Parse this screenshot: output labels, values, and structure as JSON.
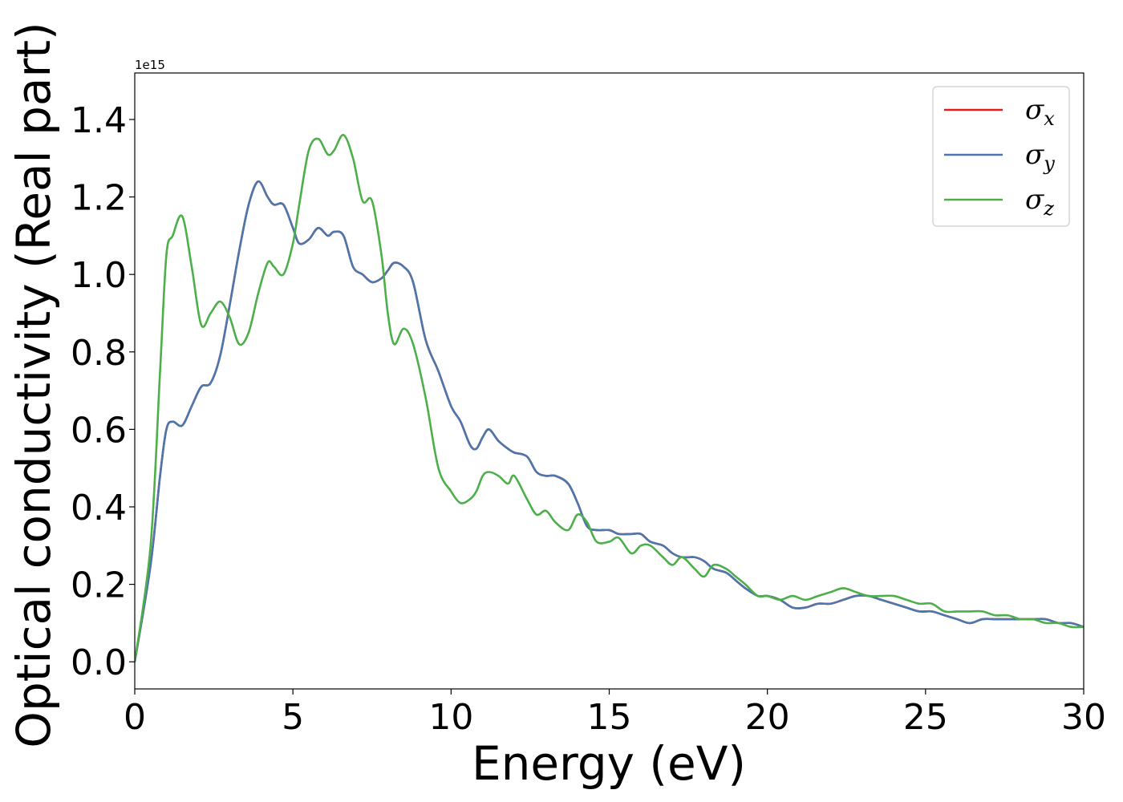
{
  "chart_data": {
    "type": "line",
    "xlabel": "Energy (eV)",
    "ylabel": "Optical conductivity (Real part)",
    "y_offset_text": "1e15",
    "xlim": [
      0,
      30
    ],
    "ylim": [
      -0.07,
      1.52
    ],
    "x_ticks": [
      0,
      5,
      10,
      15,
      20,
      25,
      30
    ],
    "x_tick_labels": [
      "0",
      "5",
      "10",
      "15",
      "20",
      "25",
      "30"
    ],
    "y_ticks": [
      0.0,
      0.2,
      0.4,
      0.6,
      0.8,
      1.0,
      1.2,
      1.4
    ],
    "y_tick_labels": [
      "0.0",
      "0.2",
      "0.4",
      "0.6",
      "0.8",
      "1.0",
      "1.2",
      "1.4"
    ],
    "grid": false,
    "legend_position": "top-right",
    "series": [
      {
        "name": "σ",
        "subscript": "x",
        "color": "#e41a1c",
        "x": [
          0,
          0.5,
          0.8,
          1.0,
          1.2,
          1.5,
          1.8,
          2.1,
          2.4,
          2.7,
          3.0,
          3.3,
          3.6,
          3.9,
          4.2,
          4.4,
          4.7,
          5.0,
          5.2,
          5.5,
          5.8,
          6.1,
          6.3,
          6.6,
          6.9,
          7.2,
          7.5,
          7.8,
          8.0,
          8.2,
          8.5,
          8.8,
          9.2,
          9.6,
          10.0,
          10.3,
          10.6,
          10.8,
          11.0,
          11.2,
          11.5,
          11.8,
          12.0,
          12.4,
          12.7,
          13.0,
          13.3,
          13.7,
          14.0,
          14.3,
          14.6,
          15.0,
          15.3,
          15.7,
          16.0,
          16.3,
          16.7,
          17.0,
          17.3,
          17.7,
          18.0,
          18.3,
          18.7,
          19.0,
          19.3,
          19.7,
          20.0,
          20.4,
          20.8,
          21.2,
          21.6,
          22.0,
          22.4,
          22.8,
          23.2,
          23.6,
          24.0,
          24.4,
          24.8,
          25.2,
          25.6,
          26.0,
          26.4,
          26.8,
          27.2,
          27.6,
          28.0,
          28.4,
          28.8,
          29.2,
          29.6,
          30.0
        ],
        "y": [
          0.0,
          0.25,
          0.48,
          0.6,
          0.62,
          0.61,
          0.66,
          0.71,
          0.72,
          0.79,
          0.92,
          1.06,
          1.18,
          1.24,
          1.2,
          1.18,
          1.18,
          1.12,
          1.08,
          1.09,
          1.12,
          1.1,
          1.11,
          1.1,
          1.02,
          1.0,
          0.98,
          0.99,
          1.01,
          1.03,
          1.02,
          0.98,
          0.83,
          0.75,
          0.66,
          0.62,
          0.56,
          0.55,
          0.58,
          0.6,
          0.57,
          0.55,
          0.54,
          0.53,
          0.49,
          0.48,
          0.48,
          0.46,
          0.41,
          0.35,
          0.34,
          0.34,
          0.33,
          0.33,
          0.33,
          0.31,
          0.3,
          0.28,
          0.27,
          0.27,
          0.26,
          0.24,
          0.23,
          0.21,
          0.19,
          0.17,
          0.17,
          0.16,
          0.14,
          0.14,
          0.15,
          0.15,
          0.16,
          0.17,
          0.17,
          0.16,
          0.15,
          0.14,
          0.13,
          0.13,
          0.12,
          0.11,
          0.1,
          0.11,
          0.11,
          0.11,
          0.11,
          0.11,
          0.11,
          0.1,
          0.1,
          0.09
        ]
      },
      {
        "name": "σ",
        "subscript": "y",
        "color": "#4a77ad",
        "x": [
          0,
          0.5,
          0.8,
          1.0,
          1.2,
          1.5,
          1.8,
          2.1,
          2.4,
          2.7,
          3.0,
          3.3,
          3.6,
          3.9,
          4.2,
          4.4,
          4.7,
          5.0,
          5.2,
          5.5,
          5.8,
          6.1,
          6.3,
          6.6,
          6.9,
          7.2,
          7.5,
          7.8,
          8.0,
          8.2,
          8.5,
          8.8,
          9.2,
          9.6,
          10.0,
          10.3,
          10.6,
          10.8,
          11.0,
          11.2,
          11.5,
          11.8,
          12.0,
          12.4,
          12.7,
          13.0,
          13.3,
          13.7,
          14.0,
          14.3,
          14.6,
          15.0,
          15.3,
          15.7,
          16.0,
          16.3,
          16.7,
          17.0,
          17.3,
          17.7,
          18.0,
          18.3,
          18.7,
          19.0,
          19.3,
          19.7,
          20.0,
          20.4,
          20.8,
          21.2,
          21.6,
          22.0,
          22.4,
          22.8,
          23.2,
          23.6,
          24.0,
          24.4,
          24.8,
          25.2,
          25.6,
          26.0,
          26.4,
          26.8,
          27.2,
          27.6,
          28.0,
          28.4,
          28.8,
          29.2,
          29.6,
          30.0
        ],
        "y": [
          0.0,
          0.25,
          0.48,
          0.6,
          0.62,
          0.61,
          0.66,
          0.71,
          0.72,
          0.79,
          0.92,
          1.06,
          1.18,
          1.24,
          1.2,
          1.18,
          1.18,
          1.12,
          1.08,
          1.09,
          1.12,
          1.1,
          1.11,
          1.1,
          1.02,
          1.0,
          0.98,
          0.99,
          1.01,
          1.03,
          1.02,
          0.98,
          0.83,
          0.75,
          0.66,
          0.62,
          0.56,
          0.55,
          0.58,
          0.6,
          0.57,
          0.55,
          0.54,
          0.53,
          0.49,
          0.48,
          0.48,
          0.46,
          0.41,
          0.35,
          0.34,
          0.34,
          0.33,
          0.33,
          0.33,
          0.31,
          0.3,
          0.28,
          0.27,
          0.27,
          0.26,
          0.24,
          0.23,
          0.21,
          0.19,
          0.17,
          0.17,
          0.16,
          0.14,
          0.14,
          0.15,
          0.15,
          0.16,
          0.17,
          0.17,
          0.16,
          0.15,
          0.14,
          0.13,
          0.13,
          0.12,
          0.11,
          0.1,
          0.11,
          0.11,
          0.11,
          0.11,
          0.11,
          0.11,
          0.1,
          0.1,
          0.09
        ]
      },
      {
        "name": "σ",
        "subscript": "z",
        "color": "#4daf4a",
        "x": [
          0,
          0.5,
          0.8,
          1.0,
          1.2,
          1.5,
          1.8,
          2.1,
          2.4,
          2.7,
          3.0,
          3.3,
          3.6,
          3.9,
          4.2,
          4.4,
          4.7,
          5.0,
          5.2,
          5.5,
          5.8,
          6.1,
          6.3,
          6.6,
          6.9,
          7.2,
          7.5,
          7.8,
          8.0,
          8.2,
          8.5,
          8.8,
          9.2,
          9.6,
          10.0,
          10.3,
          10.6,
          10.8,
          11.0,
          11.2,
          11.5,
          11.8,
          12.0,
          12.4,
          12.7,
          13.0,
          13.3,
          13.7,
          14.0,
          14.3,
          14.6,
          15.0,
          15.3,
          15.7,
          16.0,
          16.3,
          16.7,
          17.0,
          17.3,
          17.7,
          18.0,
          18.3,
          18.7,
          19.0,
          19.3,
          19.7,
          20.0,
          20.4,
          20.8,
          21.2,
          21.6,
          22.0,
          22.4,
          22.8,
          23.2,
          23.6,
          24.0,
          24.4,
          24.8,
          25.2,
          25.6,
          26.0,
          26.4,
          26.8,
          27.2,
          27.6,
          28.0,
          28.4,
          28.8,
          29.2,
          29.6,
          30.0
        ],
        "y": [
          0.0,
          0.3,
          0.75,
          1.05,
          1.1,
          1.15,
          1.02,
          0.87,
          0.9,
          0.93,
          0.89,
          0.82,
          0.85,
          0.95,
          1.03,
          1.02,
          1.0,
          1.08,
          1.18,
          1.32,
          1.35,
          1.31,
          1.32,
          1.36,
          1.3,
          1.19,
          1.19,
          1.05,
          0.9,
          0.82,
          0.86,
          0.82,
          0.68,
          0.5,
          0.44,
          0.41,
          0.42,
          0.44,
          0.48,
          0.49,
          0.48,
          0.46,
          0.48,
          0.42,
          0.38,
          0.39,
          0.36,
          0.34,
          0.38,
          0.36,
          0.31,
          0.31,
          0.32,
          0.28,
          0.3,
          0.3,
          0.27,
          0.25,
          0.27,
          0.24,
          0.22,
          0.25,
          0.24,
          0.22,
          0.2,
          0.17,
          0.17,
          0.16,
          0.17,
          0.16,
          0.17,
          0.18,
          0.19,
          0.18,
          0.17,
          0.17,
          0.17,
          0.16,
          0.15,
          0.15,
          0.13,
          0.13,
          0.13,
          0.13,
          0.12,
          0.12,
          0.11,
          0.11,
          0.1,
          0.1,
          0.09,
          0.09
        ]
      }
    ]
  }
}
